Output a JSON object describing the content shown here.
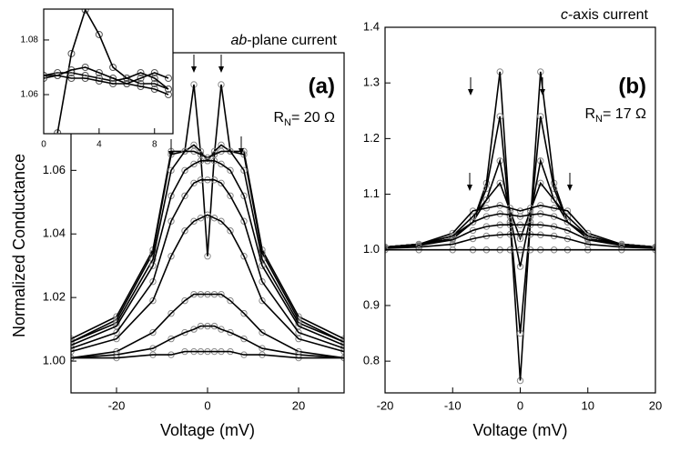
{
  "chart_data": [
    {
      "type": "line",
      "panel_label": "(a)",
      "current_label": {
        "italic": "ab",
        "rest": "-plane current"
      },
      "rn_label": {
        "main": "R",
        "sub": "N",
        "rest": "= 20 Ω"
      },
      "ylabel": "Normalized Conductance",
      "xlabel": "Voltage (mV)",
      "xlim": [
        -30,
        30
      ],
      "xticks": [
        -20,
        0,
        20
      ],
      "ylim": [
        0.99,
        1.097
      ],
      "yticks": [
        {
          "value": 1,
          "label": "1.00"
        },
        {
          "value": 1.02,
          "label": "1.02"
        },
        {
          "value": 1.04,
          "label": "1.04"
        },
        {
          "value": 1.06,
          "label": "1.06"
        }
      ],
      "line_color": "#000000",
      "marker_color": "#8a8a8a",
      "x": [
        -30,
        -20,
        -12,
        -8,
        -5,
        -3,
        -1.5,
        0,
        1.5,
        3,
        5,
        8,
        12,
        20,
        30
      ],
      "series": [
        {
          "values": [
            1.007,
            1.014,
            1.035,
            1.066,
            1.066,
            1.087,
            1.065,
            1.033,
            1.065,
            1.087,
            1.066,
            1.066,
            1.035,
            1.014,
            1.007
          ]
        },
        {
          "values": [
            1.006,
            1.013,
            1.034,
            1.065,
            1.066,
            1.068,
            1.066,
            1.063,
            1.066,
            1.068,
            1.066,
            1.065,
            1.034,
            1.013,
            1.006
          ]
        },
        {
          "values": [
            1.006,
            1.012,
            1.032,
            1.06,
            1.066,
            1.066,
            1.065,
            1.064,
            1.065,
            1.066,
            1.066,
            1.06,
            1.032,
            1.012,
            1.006
          ]
        },
        {
          "values": [
            1.005,
            1.011,
            1.03,
            1.052,
            1.06,
            1.062,
            1.063,
            1.063,
            1.063,
            1.062,
            1.06,
            1.052,
            1.03,
            1.011,
            1.005
          ]
        },
        {
          "values": [
            1.004,
            1.009,
            1.025,
            1.044,
            1.052,
            1.056,
            1.057,
            1.057,
            1.057,
            1.056,
            1.052,
            1.044,
            1.025,
            1.009,
            1.004
          ]
        },
        {
          "values": [
            1.003,
            1.007,
            1.019,
            1.033,
            1.041,
            1.044,
            1.045,
            1.046,
            1.045,
            1.044,
            1.041,
            1.033,
            1.019,
            1.007,
            1.003
          ]
        },
        {
          "values": [
            1.001,
            1.003,
            1.009,
            1.015,
            1.019,
            1.021,
            1.021,
            1.021,
            1.021,
            1.021,
            1.019,
            1.015,
            1.009,
            1.003,
            1.001
          ]
        },
        {
          "values": [
            1.001,
            1.002,
            1.004,
            1.007,
            1.009,
            1.01,
            1.011,
            1.011,
            1.011,
            1.01,
            1.009,
            1.007,
            1.004,
            1.002,
            1.001
          ]
        },
        {
          "values": [
            1.001,
            1.001,
            1.002,
            1.002,
            1.003,
            1.003,
            1.003,
            1.003,
            1.003,
            1.003,
            1.003,
            1.002,
            1.002,
            1.001,
            1.001
          ]
        }
      ]
    },
    {
      "type": "line",
      "panel_label": "(b)",
      "current_label": {
        "italic": "c",
        "rest": "-axis current"
      },
      "rn_label": {
        "main": "R",
        "sub": "N",
        "rest": "= 17 Ω"
      },
      "xlabel": "Voltage (mV)",
      "xlim": [
        -20,
        20
      ],
      "xticks": [
        -20,
        -10,
        0,
        10,
        20
      ],
      "ylim": [
        0.743,
        1.4
      ],
      "yticks": [
        0.8,
        0.9,
        {
          "value": 1,
          "label": "1.0"
        },
        1.1,
        1.2,
        1.3,
        1.4
      ],
      "line_color": "#000000",
      "marker_color": "#8a8a8a",
      "x": [
        -20,
        -15,
        -10,
        -7,
        -5,
        -3,
        -1.5,
        0,
        1.5,
        3,
        5,
        7,
        10,
        15,
        20
      ],
      "series": [
        {
          "values": [
            1.005,
            1.01,
            1.02,
            1.05,
            1.12,
            1.32,
            1.05,
            0.765,
            1.05,
            1.32,
            1.12,
            1.05,
            1.02,
            1.01,
            1.005
          ]
        },
        {
          "values": [
            1.005,
            1.01,
            1.02,
            1.05,
            1.11,
            1.24,
            1.05,
            0.85,
            1.05,
            1.24,
            1.11,
            1.05,
            1.02,
            1.01,
            1.005
          ]
        },
        {
          "values": [
            1.005,
            1.01,
            1.02,
            1.05,
            1.09,
            1.16,
            1.06,
            0.97,
            1.06,
            1.16,
            1.09,
            1.05,
            1.02,
            1.01,
            1.005
          ]
        },
        {
          "values": [
            1.005,
            1.01,
            1.025,
            1.06,
            1.09,
            1.12,
            1.07,
            1.02,
            1.07,
            1.12,
            1.09,
            1.06,
            1.025,
            1.01,
            1.005
          ]
        },
        {
          "values": [
            1.005,
            1.01,
            1.03,
            1.07,
            1.075,
            1.08,
            1.075,
            1.07,
            1.075,
            1.08,
            1.075,
            1.07,
            1.03,
            1.01,
            1.005
          ]
        },
        {
          "values": [
            1.005,
            1.01,
            1.025,
            1.05,
            1.06,
            1.065,
            1.063,
            1.06,
            1.063,
            1.065,
            1.06,
            1.05,
            1.025,
            1.01,
            1.005
          ]
        },
        {
          "values": [
            1.004,
            1.008,
            1.018,
            1.035,
            1.042,
            1.045,
            1.045,
            1.045,
            1.045,
            1.045,
            1.042,
            1.035,
            1.018,
            1.008,
            1.004
          ]
        },
        {
          "values": [
            1.003,
            1.005,
            1.01,
            1.02,
            1.025,
            1.027,
            1.028,
            1.028,
            1.028,
            1.027,
            1.025,
            1.02,
            1.01,
            1.005,
            1.003
          ]
        },
        {
          "values": [
            1,
            1,
            1,
            1,
            1,
            1,
            1,
            1,
            1,
            1,
            1,
            1,
            1,
            1,
            1
          ]
        }
      ]
    },
    {
      "type": "line",
      "xlim": [
        0,
        9.33
      ],
      "xticks": [
        0,
        4,
        8
      ],
      "ylim": [
        1.0457,
        1.0913
      ],
      "yticks": [
        1.06,
        1.08
      ],
      "line_color": "#000000",
      "marker_color": "#555555",
      "x": [
        0,
        1,
        2,
        3,
        4,
        5,
        6,
        7,
        8,
        9
      ],
      "series": [
        {
          "values": [
            null,
            1.046,
            1.075,
            1.091,
            1.082,
            1.07,
            1.066,
            1.064,
            1.064,
            1.062
          ]
        },
        {
          "values": [
            1.067,
            1.068,
            1.068,
            1.067,
            1.066,
            1.065,
            1.066,
            1.068,
            1.066,
            1.062
          ]
        },
        {
          "values": [
            1.066,
            1.067,
            1.069,
            1.07,
            1.068,
            1.066,
            1.064,
            1.063,
            1.062,
            1.06
          ]
        },
        {
          "values": [
            1.067,
            1.067,
            1.066,
            1.066,
            1.065,
            1.064,
            1.064,
            1.066,
            1.068,
            1.066
          ]
        }
      ]
    }
  ]
}
